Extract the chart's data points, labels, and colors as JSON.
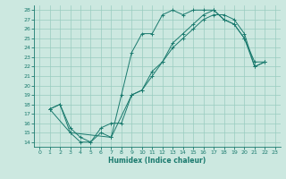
{
  "title": "",
  "xlabel": "Humidex (Indice chaleur)",
  "bg_color": "#cce8e0",
  "grid_color": "#99ccc0",
  "line_color": "#1a7a6e",
  "xlim": [
    -0.5,
    23.5
  ],
  "ylim": [
    13.5,
    28.5
  ],
  "xticks": [
    0,
    1,
    2,
    3,
    4,
    5,
    6,
    7,
    8,
    9,
    10,
    11,
    12,
    13,
    14,
    15,
    16,
    17,
    18,
    19,
    20,
    21,
    22,
    23
  ],
  "yticks": [
    14,
    15,
    16,
    17,
    18,
    19,
    20,
    21,
    22,
    23,
    24,
    25,
    26,
    27,
    28
  ],
  "line1": {
    "x": [
      1,
      2,
      3,
      4,
      5,
      6,
      7,
      8,
      9,
      10,
      11,
      12,
      13,
      14,
      15,
      16,
      17,
      18,
      19,
      20,
      21,
      22
    ],
    "y": [
      17.5,
      18.0,
      15.0,
      14.0,
      14.0,
      15.0,
      14.5,
      19.0,
      23.5,
      25.5,
      25.5,
      27.5,
      28.0,
      27.5,
      28.0,
      28.0,
      28.0,
      27.0,
      26.5,
      25.0,
      22.5,
      22.5
    ]
  },
  "line2": {
    "x": [
      1,
      2,
      3,
      4,
      5,
      6,
      7,
      8,
      9,
      10,
      11,
      12,
      13,
      14,
      15,
      16,
      17,
      18,
      19,
      20,
      21,
      22
    ],
    "y": [
      17.5,
      18.0,
      15.5,
      14.5,
      14.0,
      15.5,
      16.0,
      16.0,
      19.0,
      19.5,
      21.5,
      22.5,
      24.0,
      25.0,
      26.0,
      27.0,
      27.5,
      27.5,
      27.0,
      25.5,
      22.0,
      22.5
    ]
  },
  "line3": {
    "x": [
      1,
      3,
      7,
      9,
      10,
      11,
      12,
      13,
      14,
      15,
      16,
      17,
      18,
      19,
      20,
      21,
      22
    ],
    "y": [
      17.5,
      15.0,
      14.5,
      19.0,
      19.5,
      21.0,
      22.5,
      24.5,
      25.5,
      26.5,
      27.5,
      28.0,
      27.0,
      26.5,
      25.0,
      22.0,
      22.5
    ]
  }
}
